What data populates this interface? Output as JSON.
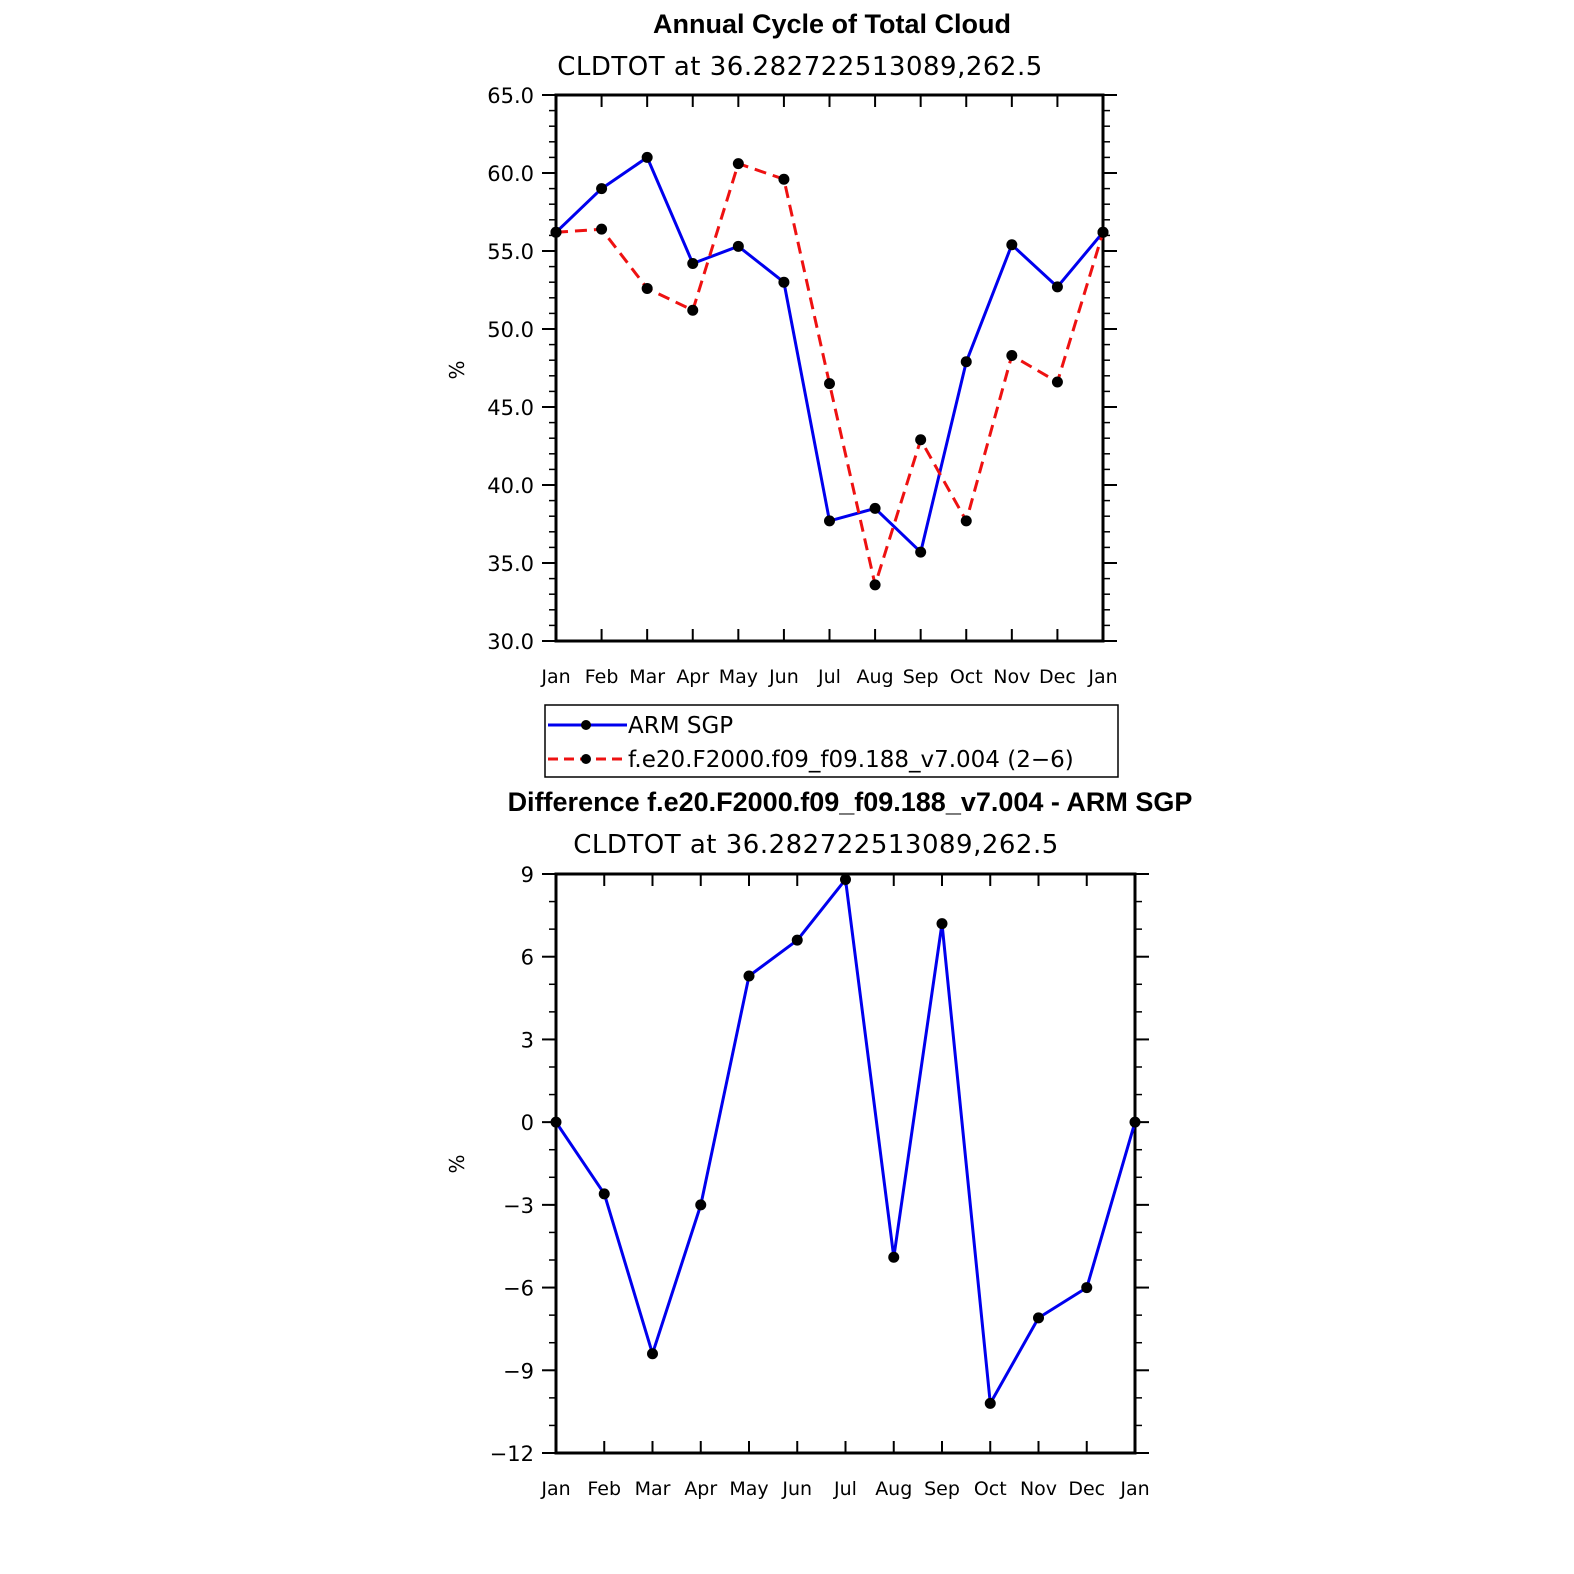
{
  "chart_data": [
    {
      "type": "line",
      "title": "Annual Cycle of Total Cloud",
      "subtitle": "CLDTOT at 36.282722513089,262.5",
      "ylabel": "%",
      "xlabel": "",
      "categories": [
        "Jan",
        "Feb",
        "Mar",
        "Apr",
        "May",
        "Jun",
        "Jul",
        "Aug",
        "Sep",
        "Oct",
        "Nov",
        "Dec",
        "Jan"
      ],
      "ylim": [
        30,
        65
      ],
      "yticks": [
        "65.0",
        "60.0",
        "55.0",
        "50.0",
        "45.0",
        "40.0",
        "35.0",
        "30.0"
      ],
      "ytick_values": [
        65,
        60,
        55,
        50,
        45,
        40,
        35,
        30
      ],
      "yminor_step": 1,
      "series": [
        {
          "name": "ARM SGP",
          "color": "#0000ee",
          "dash": "solid",
          "values": [
            56.2,
            59.0,
            61.0,
            54.2,
            55.3,
            53.0,
            37.7,
            38.5,
            35.7,
            47.9,
            55.4,
            52.7,
            56.2
          ]
        },
        {
          "name": "f.e20.F2000.f09_f09.188_v7.004 (2−6)",
          "color": "#ee1111",
          "dash": "dashed",
          "values": [
            56.2,
            56.4,
            52.6,
            51.2,
            60.6,
            59.6,
            46.5,
            33.6,
            42.9,
            37.7,
            48.3,
            46.6,
            56.2
          ]
        }
      ],
      "legend_position": "below"
    },
    {
      "type": "line",
      "title": "Difference f.e20.F2000.f09_f09.188_v7.004 - ARM SGP",
      "subtitle": "CLDTOT at 36.282722513089,262.5",
      "ylabel": "%",
      "xlabel": "",
      "categories": [
        "Jan",
        "Feb",
        "Mar",
        "Apr",
        "May",
        "Jun",
        "Jul",
        "Aug",
        "Sep",
        "Oct",
        "Nov",
        "Dec",
        "Jan"
      ],
      "ylim": [
        -12,
        9
      ],
      "yticks": [
        "9",
        "6",
        "3",
        "0",
        "−3",
        "−6",
        "−9",
        "−12"
      ],
      "ytick_values": [
        9,
        6,
        3,
        0,
        -3,
        -6,
        -9,
        -12
      ],
      "yminor_step": 1,
      "series": [
        {
          "name": "Difference",
          "color": "#0000ee",
          "dash": "solid",
          "values": [
            0.0,
            -2.6,
            -8.4,
            -3.0,
            5.3,
            6.6,
            8.8,
            -4.9,
            7.2,
            -10.2,
            -7.1,
            -6.0,
            0.0
          ]
        }
      ]
    }
  ]
}
